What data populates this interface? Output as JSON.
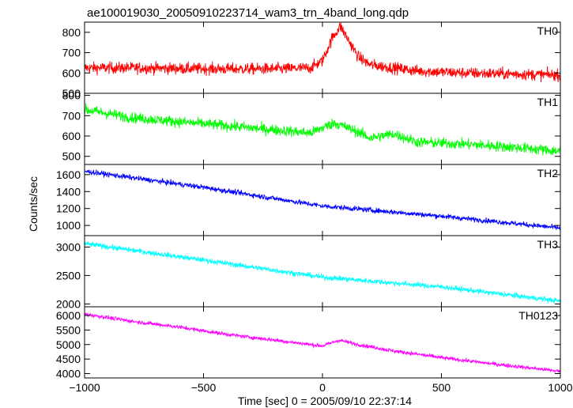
{
  "chart_data": {
    "type": "line",
    "title": "ae100019030_20050910223714_wam3_trn_4band_long.qdp",
    "xlabel": "Time [sec] 0 = 2005/09/10 22:37:14",
    "ylabel": "Counts/sec",
    "xlim": [
      -1000,
      1000
    ],
    "xticks": [
      -1000,
      -500,
      0,
      500,
      1000
    ],
    "grid": false,
    "series": [
      {
        "name": "TH0",
        "color": "#ff0000",
        "ylim": [
          500,
          850
        ],
        "yticks": [
          500,
          600,
          700,
          800
        ],
        "x": [
          -1000,
          -800,
          -600,
          -400,
          -200,
          -50,
          0,
          40,
          75,
          110,
          150,
          200,
          400,
          600,
          800,
          1000
        ],
        "y": [
          625,
          625,
          622,
          620,
          620,
          625,
          660,
          770,
          830,
          760,
          680,
          640,
          610,
          600,
          595,
          590
        ],
        "noise": 28
      },
      {
        "name": "TH1",
        "color": "#00ff00",
        "ylim": [
          460,
          810
        ],
        "yticks": [
          500,
          600,
          700,
          800
        ],
        "x": [
          -1000,
          -800,
          -600,
          -400,
          -200,
          -50,
          50,
          150,
          200,
          300,
          400,
          600,
          800,
          1000
        ],
        "y": [
          730,
          690,
          670,
          650,
          630,
          615,
          665,
          620,
          590,
          610,
          570,
          560,
          545,
          525
        ],
        "noise": 26
      },
      {
        "name": "TH2",
        "color": "#0000ff",
        "ylim": [
          880,
          1720
        ],
        "yticks": [
          1000,
          1200,
          1400,
          1600
        ],
        "x": [
          -1000,
          -500,
          0,
          500,
          1000
        ],
        "y": [
          1640,
          1450,
          1230,
          1110,
          970
        ],
        "noise": 30
      },
      {
        "name": "TH3",
        "color": "#00ffff",
        "ylim": [
          1950,
          3200
        ],
        "yticks": [
          2000,
          2500,
          3000
        ],
        "x": [
          -1000,
          -500,
          0,
          500,
          1000
        ],
        "y": [
          3060,
          2770,
          2470,
          2300,
          2050
        ],
        "noise": 45
      },
      {
        "name": "TH0123",
        "color": "#ff00ff",
        "ylim": [
          3850,
          6300
        ],
        "yticks": [
          4000,
          4500,
          5000,
          5500,
          6000
        ],
        "x": [
          -1000,
          -800,
          -600,
          -400,
          -200,
          -50,
          0,
          70,
          150,
          300,
          500,
          700,
          1000
        ],
        "y": [
          6050,
          5800,
          5600,
          5350,
          5150,
          5000,
          4950,
          5150,
          5000,
          4780,
          4550,
          4350,
          4080
        ],
        "noise": 65
      }
    ]
  }
}
